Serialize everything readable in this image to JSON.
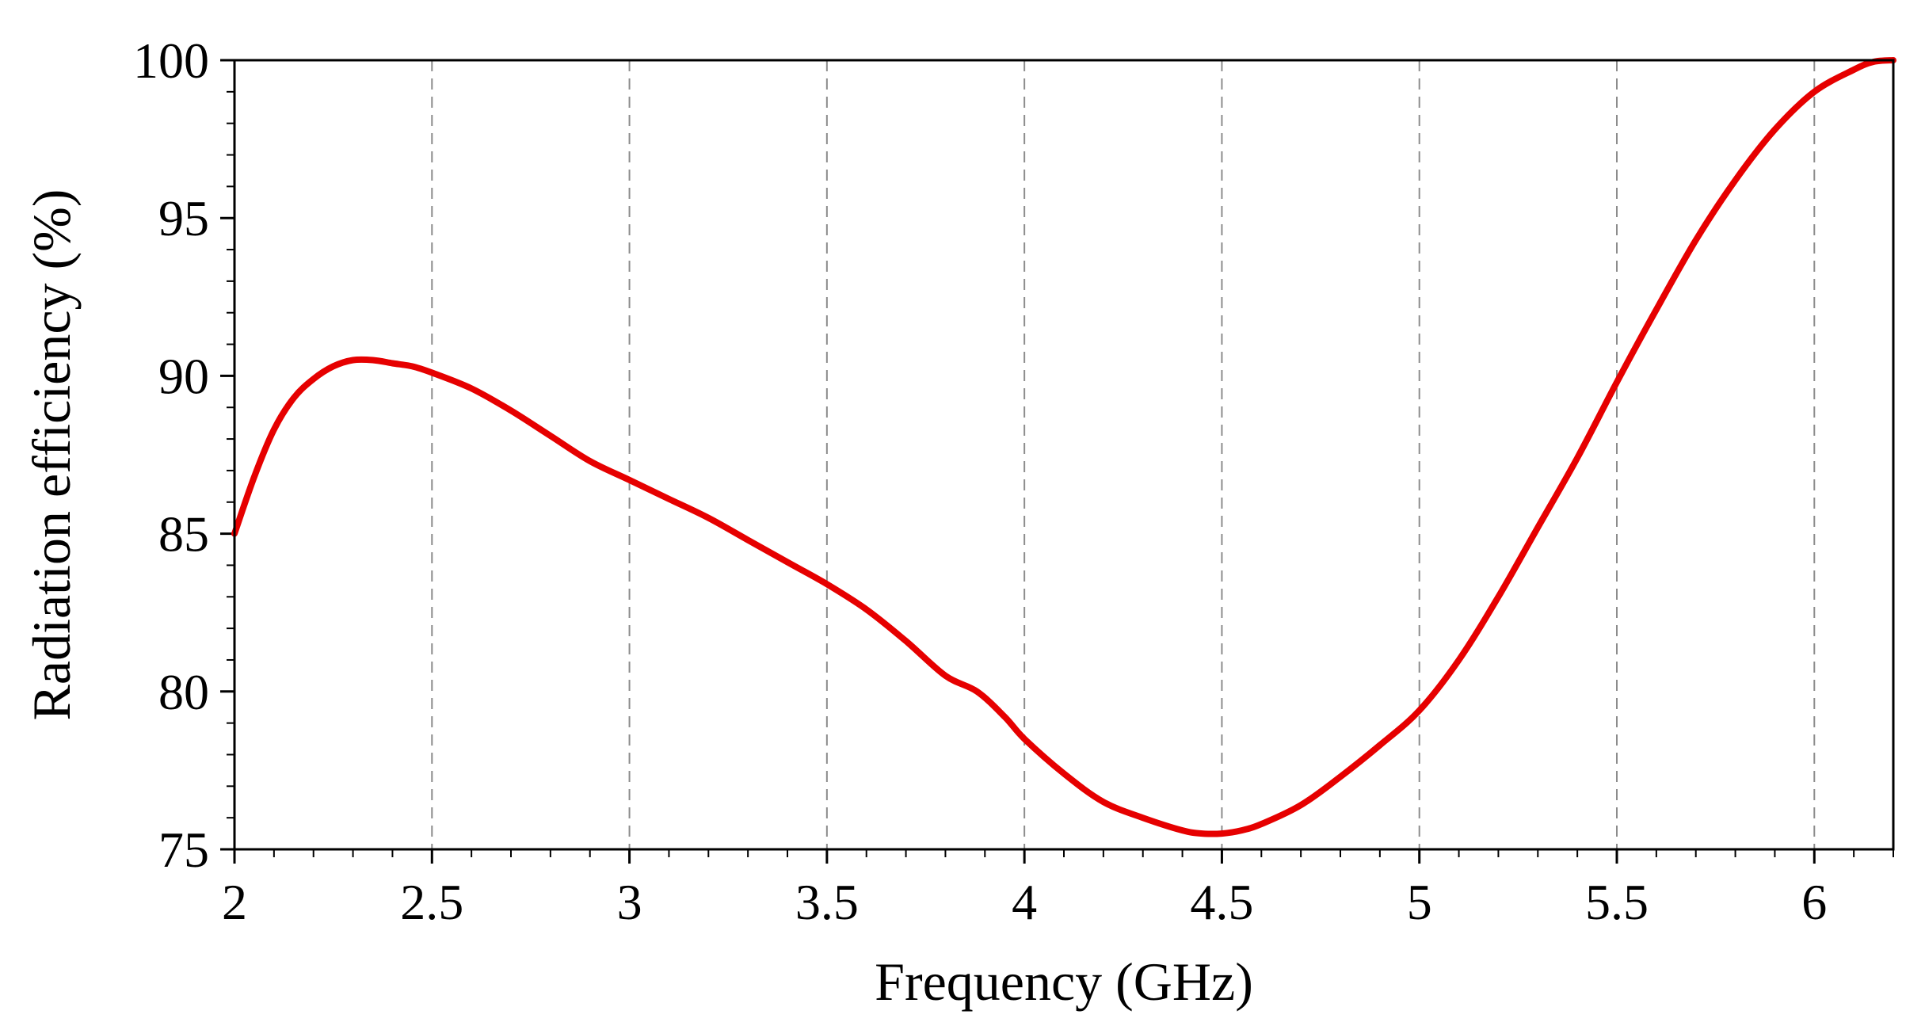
{
  "chart_data": {
    "type": "line",
    "title": "",
    "xlabel": "Frequency (GHz)",
    "ylabel": "Radiation efficiency (%)",
    "xlim": [
      2,
      6.2
    ],
    "ylim": [
      75,
      100
    ],
    "x_ticks": [
      2,
      2.5,
      3,
      3.5,
      4,
      4.5,
      5,
      5.5,
      6
    ],
    "x_tick_labels": [
      "2",
      "2.5",
      "3",
      "3.5",
      "4",
      "4.5",
      "5",
      "5.5",
      "6"
    ],
    "y_ticks": [
      75,
      80,
      85,
      90,
      95,
      100
    ],
    "y_tick_labels": [
      "75",
      "80",
      "85",
      "90",
      "95",
      "100"
    ],
    "grid": "vertical dashed at major x ticks",
    "legend": "none",
    "colors": {
      "line": "#e60000",
      "grid": "#8c8c8c",
      "axis": "#000000"
    },
    "series": [
      {
        "x": [
          2.0,
          2.05,
          2.1,
          2.15,
          2.2,
          2.25,
          2.3,
          2.35,
          2.4,
          2.45,
          2.5,
          2.6,
          2.7,
          2.8,
          2.9,
          3.0,
          3.1,
          3.2,
          3.3,
          3.4,
          3.5,
          3.6,
          3.7,
          3.8,
          3.88,
          3.95,
          4.0,
          4.1,
          4.2,
          4.3,
          4.4,
          4.45,
          4.5,
          4.55,
          4.6,
          4.7,
          4.8,
          4.9,
          5.0,
          5.1,
          5.2,
          5.3,
          5.4,
          5.5,
          5.6,
          5.7,
          5.8,
          5.9,
          6.0,
          6.1,
          6.15,
          6.2
        ],
        "y": [
          85.0,
          86.8,
          88.3,
          89.3,
          89.9,
          90.3,
          90.5,
          90.5,
          90.4,
          90.3,
          90.1,
          89.6,
          88.9,
          88.1,
          87.3,
          86.7,
          86.1,
          85.5,
          84.8,
          84.1,
          83.4,
          82.6,
          81.6,
          80.5,
          80.0,
          79.2,
          78.5,
          77.4,
          76.5,
          76.0,
          75.6,
          75.5,
          75.5,
          75.6,
          75.8,
          76.4,
          77.3,
          78.3,
          79.4,
          81.0,
          83.0,
          85.2,
          87.4,
          89.8,
          92.1,
          94.3,
          96.2,
          97.8,
          99.0,
          99.7,
          99.95,
          100.0
        ]
      }
    ]
  }
}
